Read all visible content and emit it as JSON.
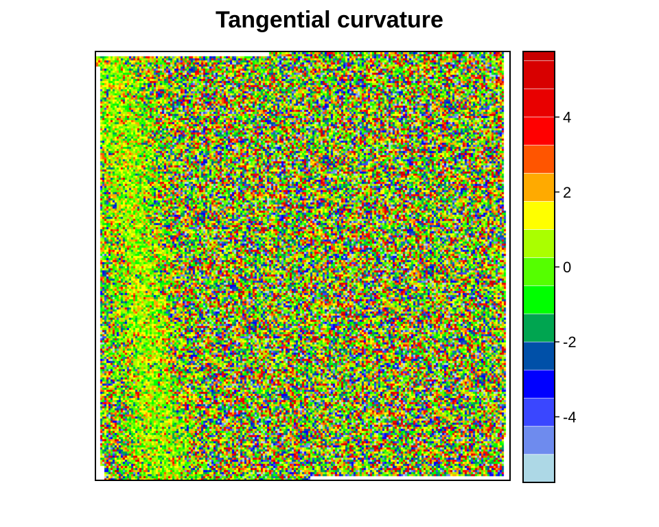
{
  "chart_data": {
    "type": "heatmap",
    "title": "Tangential curvature",
    "xlabel": "",
    "ylabel": "",
    "legend": {
      "placement": "right",
      "range": [
        -5.75,
        5.75
      ],
      "ticks": [
        4,
        2,
        0,
        -2,
        -4
      ],
      "bins": [
        {
          "from": -5.75,
          "to": -5.0,
          "color": "#ADD8E6"
        },
        {
          "from": -5.0,
          "to": -4.25,
          "color": "#6E8BEE"
        },
        {
          "from": -4.25,
          "to": -3.5,
          "color": "#3A47FF"
        },
        {
          "from": -3.5,
          "to": -2.75,
          "color": "#0000FF"
        },
        {
          "from": -2.75,
          "to": -2.0,
          "color": "#0050A8"
        },
        {
          "from": -2.0,
          "to": -1.25,
          "color": "#00A550"
        },
        {
          "from": -1.25,
          "to": -0.5,
          "color": "#00FF00"
        },
        {
          "from": -0.5,
          "to": 0.25,
          "color": "#55FF00"
        },
        {
          "from": 0.25,
          "to": 1.0,
          "color": "#AAFF00"
        },
        {
          "from": 1.0,
          "to": 1.75,
          "color": "#FFFF00"
        },
        {
          "from": 1.75,
          "to": 2.5,
          "color": "#FFAA00"
        },
        {
          "from": 2.5,
          "to": 3.25,
          "color": "#FF5500"
        },
        {
          "from": 3.25,
          "to": 4.0,
          "color": "#FF0000"
        },
        {
          "from": 4.0,
          "to": 4.75,
          "color": "#E80000"
        },
        {
          "from": 4.75,
          "to": 5.5,
          "color": "#D80000"
        },
        {
          "from": 5.5,
          "to": 5.75,
          "color": "#C80000"
        }
      ]
    },
    "grid": false
  }
}
